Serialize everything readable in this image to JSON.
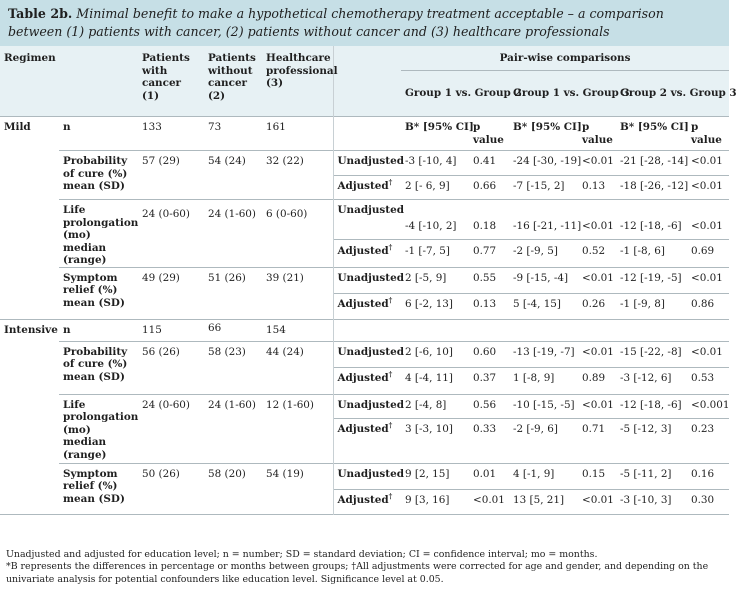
{
  "title": {
    "label": "Table 2b.",
    "text": "Minimal benefit to make a hypothetical chemotherapy treatment acceptable – a comparison between (1) patients with cancer, (2) patients without cancer and (3) healthcare professionals"
  },
  "header": {
    "regimen": "Regimen",
    "g1": "Patients with cancer (1)",
    "g2": "Patients without cancer (2)",
    "g3": "Healthcare professional (3)",
    "pairwise": "Pair-wise comparisons",
    "cmp12": "Group 1 vs. Group 2",
    "cmp13": "Group 1 vs. Group 3",
    "cmp23": "Group 2 vs. Group 3",
    "b": "B* [95% CI]",
    "p": "p value"
  },
  "mild": {
    "regimen": "Mild",
    "n": {
      "label": "n",
      "g1": "133",
      "g2": "73",
      "g3": "161"
    },
    "cure": {
      "label": "Probability of cure (%) mean (SD)",
      "g1": "57 (29)",
      "g2": "54 (24)",
      "g3": "32 (22)",
      "unadj": {
        "label": "Unadjusted",
        "b12": "-3 [-10, 4]",
        "p12": "0.41",
        "b13": "-24 [-30, -19]",
        "p13": "<0.01",
        "b23": "-21 [-28, -14]",
        "p23": "<0.01"
      },
      "adj": {
        "label": "Adjusted",
        "b12": "2 [- 6, 9]",
        "p12": "0.66",
        "b13": "-7 [-15, 2]",
        "p13": "0.13",
        "b23": "-18 [-26, -12]",
        "p23": "<0.01"
      }
    },
    "life": {
      "label": "Life prolongation (mo) median (range)",
      "g1": "24 (0-60)",
      "g2": "24 (1-60)",
      "g3": "6 (0-60)",
      "unadj": {
        "label": "Unadjusted",
        "b12": "-4 [-10, 2]",
        "p12": "0.18",
        "b13": "-16 [-21, -11]",
        "p13": "<0.01",
        "b23": "-12 [-18, -6]",
        "p23": "<0.01"
      },
      "adj": {
        "label": "Adjusted",
        "b12": "-1 [-7, 5]",
        "p12": "0.77",
        "b13": "-2 [-9, 5]",
        "p13": "0.52",
        "b23": "-1 [-8, 6]",
        "p23": "0.69"
      }
    },
    "symptom": {
      "label": "Symptom relief (%) mean (SD)",
      "g1": "49 (29)",
      "g2": "51 (26)",
      "g3": "39 (21)",
      "unadj": {
        "label": "Unadjusted",
        "b12": "2 [-5, 9]",
        "p12": "0.55",
        "b13": "-9 [-15, -4]",
        "p13": "<0.01",
        "b23": "-12 [-19, -5]",
        "p23": "<0.01"
      },
      "adj": {
        "label": "Adjusted",
        "b12": "6 [-2, 13]",
        "p12": "0.13",
        "b13": "5 [-4, 15]",
        "p13": "0.26",
        "b23": "-1 [-9, 8]",
        "p23": "0.86"
      }
    }
  },
  "intensive": {
    "regimen": "Intensive",
    "n": {
      "label": "n",
      "g1": "115",
      "g2": "66",
      "g3": "154"
    },
    "cure": {
      "label": "Probability of cure (%) mean (SD)",
      "g1": "56 (26)",
      "g2": "58 (23)",
      "g3": "44 (24)",
      "unadj": {
        "label": "Unadjusted",
        "b12": "2 [-6, 10]",
        "p12": "0.60",
        "b13": "-13 [-19, -7]",
        "p13": "<0.01",
        "b23": "-15 [-22, -8]",
        "p23": "<0.01"
      },
      "adj": {
        "label": "Adjusted",
        "b12": "4 [-4, 11]",
        "p12": "0.37",
        "b13": "1 [-8, 9]",
        "p13": "0.89",
        "b23": "-3 [-12, 6]",
        "p23": "0.53"
      }
    },
    "life": {
      "label": "Life prolongation (mo) median (range)",
      "g1": "24 (0-60)",
      "g2": "24 (1-60)",
      "g3": "12 (1-60)",
      "unadj": {
        "label": "Unadjusted",
        "b12": "2 [-4, 8]",
        "p12": "0.56",
        "b13": "-10 [-15, -5]",
        "p13": "<0.01",
        "b23": "-12 [-18, -6]",
        "p23": "<0.001"
      },
      "adj": {
        "label": "Adjusted",
        "b12": "3 [-3, 10]",
        "p12": "0.33",
        "b13": "-2 [-9, 6]",
        "p13": "0.71",
        "b23": "-5 [-12, 3]",
        "p23": "0.23"
      }
    },
    "symptom": {
      "label": "Symptom relief (%) mean (SD)",
      "g1": "50 (26)",
      "g2": "58 (20)",
      "g3": "54 (19)",
      "unadj": {
        "label": "Unadjusted",
        "b12": "9 [2, 15]",
        "p12": "0.01",
        "b13": "4 [-1, 9]",
        "p13": "0.15",
        "b23": "-5 [-11, 2]",
        "p23": "0.16"
      },
      "adj": {
        "label": "Adjusted",
        "b12": "9 [3, 16]",
        "p12": "<0.01",
        "b13": "13 [5, 21]",
        "p13": "<0.01",
        "b23": "-3 [-10, 3]",
        "p23": "0.30"
      }
    }
  },
  "adjusted_mark": "†",
  "footnotes": [
    "Unadjusted and adjusted for education level; n = number; SD = standard deviation; CI = confidence interval; mo = months.",
    "*B represents the differences in percentage or months between groups; †All adjustments were corrected for age and gender, and depending on the univariate analysis for potential confounders like education level. Significance level at 0.05."
  ],
  "colors": {
    "title_bg": "#c6dfe6",
    "header_bg": "#e7f1f4",
    "rule": "#aeb9be"
  }
}
